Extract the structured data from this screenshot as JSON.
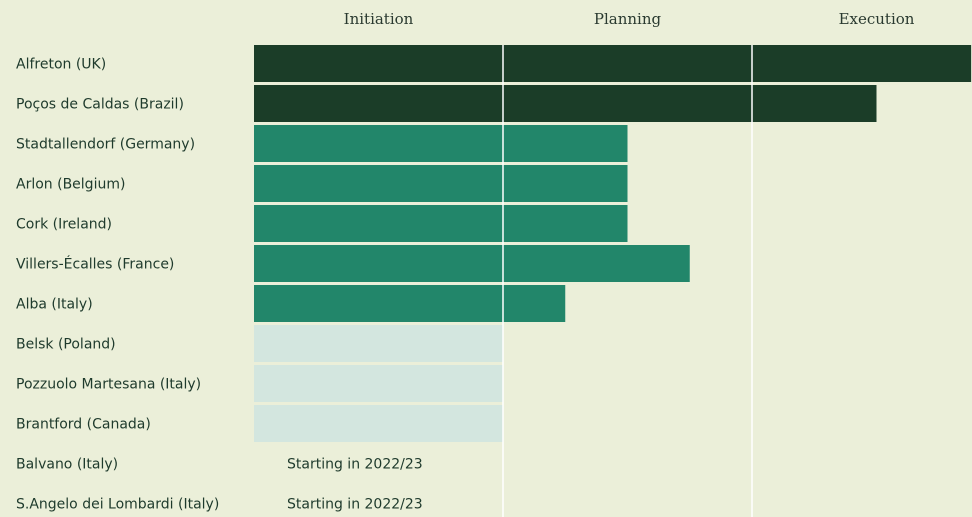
{
  "chart_data": {
    "type": "bar",
    "phases": [
      "Initiation",
      "Planning",
      "Execution"
    ],
    "categories": [
      "Alfreton (UK)",
      "Poços de Caldas (Brazil)",
      "Stadtallendorf (Germany)",
      "Arlon (Belgium)",
      "Cork (Ireland)",
      "Villers-Écalles (France)",
      "Alba (Italy)",
      "Belsk (Poland)",
      "Pozzuolo Martesana (Italy)",
      "Brantford (Canada)",
      "Balvano (Italy)",
      "S.Angelo dei Lombardi (Italy)"
    ],
    "values": [
      2.88,
      2.5,
      1.5,
      1.5,
      1.5,
      1.75,
      1.25,
      1.0,
      1.0,
      1.0,
      null,
      null
    ],
    "colors": [
      "#1b3d28",
      "#1b3d28",
      "#22866a",
      "#22866a",
      "#22866a",
      "#22866a",
      "#22866a",
      "#d3e6df",
      "#d3e6df",
      "#d3e6df",
      null,
      null
    ],
    "status_labels": [
      null,
      null,
      null,
      null,
      null,
      null,
      null,
      null,
      null,
      null,
      "Starting in 2022/23",
      "Starting in 2022/23"
    ],
    "xlim": [
      0,
      3
    ]
  }
}
